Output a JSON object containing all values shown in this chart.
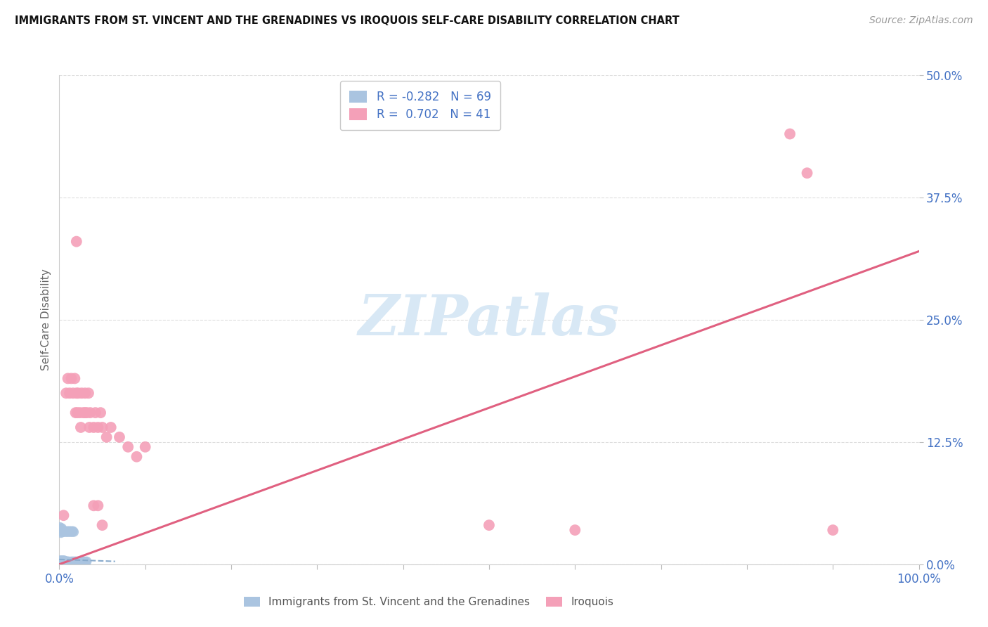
{
  "title": "IMMIGRANTS FROM ST. VINCENT AND THE GRENADINES VS IROQUOIS SELF-CARE DISABILITY CORRELATION CHART",
  "source": "Source: ZipAtlas.com",
  "ylabel": "Self-Care Disability",
  "blue_label": "Immigrants from St. Vincent and the Grenadines",
  "pink_label": "Iroquois",
  "blue_R": -0.282,
  "blue_N": 69,
  "pink_R": 0.702,
  "pink_N": 41,
  "blue_color": "#aac4e0",
  "pink_color": "#f4a0b8",
  "blue_line_color": "#88aacc",
  "pink_line_color": "#e06080",
  "axis_label_color": "#4472c4",
  "xlim": [
    0,
    1.0
  ],
  "ylim": [
    0,
    0.5
  ],
  "yticks": [
    0,
    0.125,
    0.25,
    0.375,
    0.5
  ],
  "ytick_labels": [
    "0.0%",
    "12.5%",
    "25.0%",
    "37.5%",
    "50.0%"
  ],
  "xtick_labels": [
    "0.0%",
    "",
    "",
    "",
    "",
    "",
    "",
    "",
    "",
    "",
    "100.0%"
  ],
  "pink_scatter_x": [
    0.005,
    0.008,
    0.01,
    0.012,
    0.014,
    0.016,
    0.018,
    0.019,
    0.02,
    0.021,
    0.022,
    0.024,
    0.026,
    0.028,
    0.03,
    0.032,
    0.034,
    0.036,
    0.04,
    0.042,
    0.045,
    0.048,
    0.05,
    0.055,
    0.06,
    0.07,
    0.08,
    0.09,
    0.1,
    0.5,
    0.6,
    0.85,
    0.87,
    0.9,
    0.02,
    0.025,
    0.03,
    0.035,
    0.04,
    0.045,
    0.05
  ],
  "pink_scatter_y": [
    0.05,
    0.175,
    0.19,
    0.175,
    0.19,
    0.175,
    0.19,
    0.155,
    0.175,
    0.155,
    0.175,
    0.155,
    0.175,
    0.155,
    0.175,
    0.155,
    0.175,
    0.155,
    0.14,
    0.155,
    0.14,
    0.155,
    0.14,
    0.13,
    0.14,
    0.13,
    0.12,
    0.11,
    0.12,
    0.04,
    0.035,
    0.44,
    0.4,
    0.035,
    0.33,
    0.14,
    0.155,
    0.14,
    0.06,
    0.06,
    0.04
  ],
  "blue_scatter_x": [
    0.001,
    0.001,
    0.001,
    0.002,
    0.002,
    0.002,
    0.003,
    0.003,
    0.003,
    0.004,
    0.004,
    0.004,
    0.005,
    0.005,
    0.005,
    0.006,
    0.006,
    0.006,
    0.007,
    0.007,
    0.008,
    0.008,
    0.009,
    0.009,
    0.01,
    0.01,
    0.011,
    0.011,
    0.012,
    0.013,
    0.014,
    0.015,
    0.016,
    0.017,
    0.018,
    0.019,
    0.02,
    0.021,
    0.022,
    0.023,
    0.024,
    0.025,
    0.026,
    0.027,
    0.028,
    0.029,
    0.03,
    0.031,
    0.032,
    0.001,
    0.001,
    0.002,
    0.002,
    0.003,
    0.003,
    0.004,
    0.005,
    0.006,
    0.007,
    0.008,
    0.009,
    0.01,
    0.011,
    0.012,
    0.013,
    0.014,
    0.015,
    0.016,
    0.017
  ],
  "blue_scatter_y": [
    0.002,
    0.003,
    0.004,
    0.002,
    0.003,
    0.004,
    0.002,
    0.003,
    0.004,
    0.002,
    0.003,
    0.004,
    0.002,
    0.003,
    0.004,
    0.002,
    0.003,
    0.004,
    0.002,
    0.003,
    0.002,
    0.003,
    0.002,
    0.003,
    0.002,
    0.003,
    0.002,
    0.003,
    0.002,
    0.002,
    0.003,
    0.002,
    0.003,
    0.002,
    0.003,
    0.002,
    0.003,
    0.002,
    0.003,
    0.002,
    0.003,
    0.002,
    0.003,
    0.002,
    0.003,
    0.002,
    0.003,
    0.002,
    0.003,
    0.035,
    0.038,
    0.032,
    0.036,
    0.033,
    0.037,
    0.034,
    0.033,
    0.034,
    0.033,
    0.034,
    0.033,
    0.034,
    0.033,
    0.034,
    0.033,
    0.034,
    0.033,
    0.034,
    0.033
  ],
  "pink_line_x": [
    0.0,
    1.0
  ],
  "pink_line_y": [
    0.0,
    0.32
  ],
  "blue_line_x": [
    0.0,
    0.065
  ],
  "blue_line_y": [
    0.005,
    0.003
  ],
  "watermark": "ZIPatlas",
  "watermark_color": "#d8e8f5",
  "background_color": "#ffffff",
  "grid_color": "#dddddd"
}
